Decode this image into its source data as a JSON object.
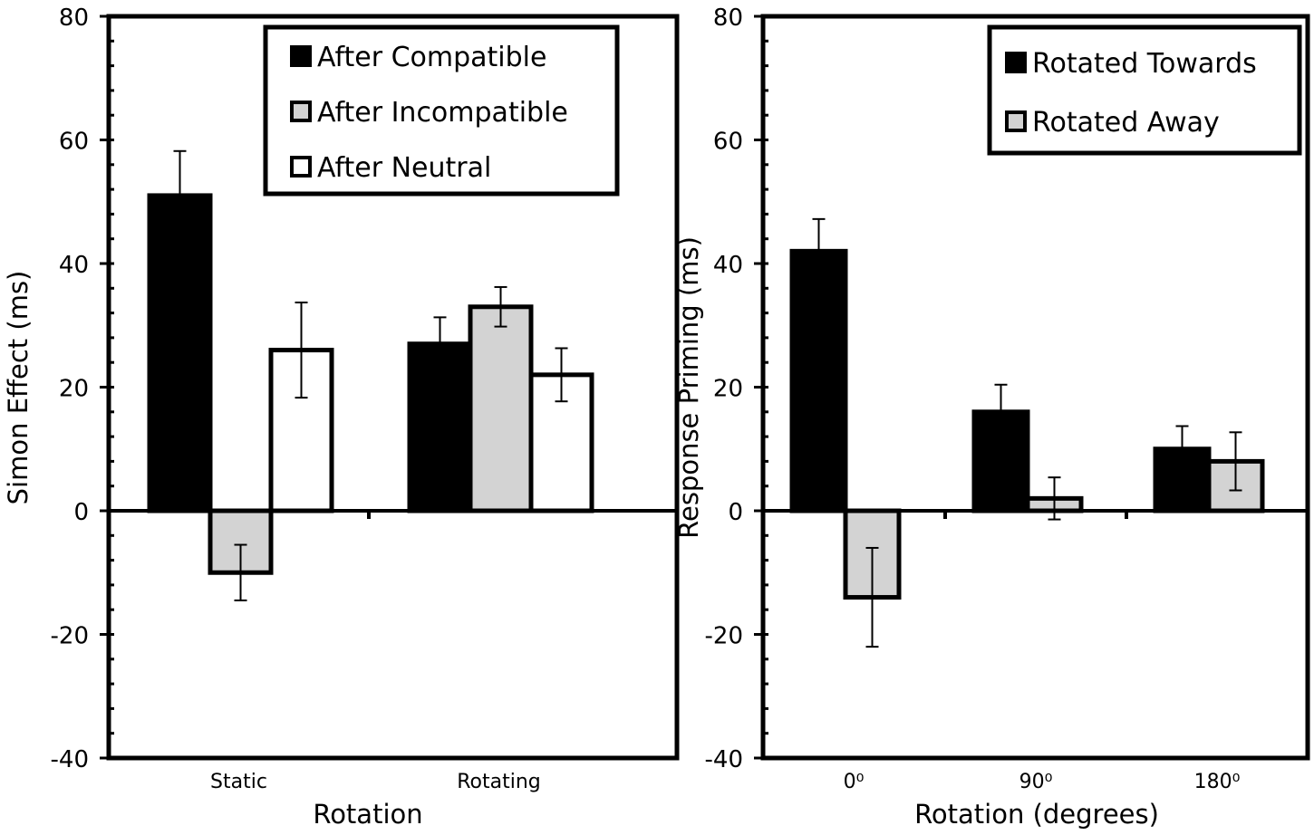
{
  "chart_data": [
    {
      "type": "bar",
      "title": "",
      "xlabel": "Rotation",
      "ylabel": "Simon Effect (ms)",
      "ylim": [
        -40,
        80
      ],
      "yticks": [
        -40,
        -20,
        0,
        20,
        40,
        60,
        80
      ],
      "categories": [
        "Static",
        "Rotating"
      ],
      "legend_position": "top-right",
      "series": [
        {
          "name": "After Compatible",
          "color": "#000000",
          "values": [
            51,
            27
          ],
          "errors": [
            7.2,
            4.3
          ]
        },
        {
          "name": "After Incompatible",
          "color": "#d3d3d3",
          "values": [
            -10,
            33
          ],
          "errors": [
            4.5,
            3.2
          ]
        },
        {
          "name": "After Neutral",
          "color": "#ffffff",
          "values": [
            26,
            22
          ],
          "errors": [
            7.7,
            4.3
          ]
        }
      ]
    },
    {
      "type": "bar",
      "title": "",
      "xlabel": "Rotation (degrees)",
      "ylabel": "Response Priming (ms)",
      "ylim": [
        -40,
        80
      ],
      "yticks": [
        -40,
        -20,
        0,
        20,
        40,
        60,
        80
      ],
      "categories": [
        "0⁰",
        "90⁰",
        "180⁰"
      ],
      "legend_position": "top-right",
      "series": [
        {
          "name": "Rotated Towards",
          "color": "#000000",
          "values": [
            42,
            16,
            10
          ],
          "errors": [
            5.2,
            4.4,
            3.7
          ]
        },
        {
          "name": "Rotated Away",
          "color": "#d3d3d3",
          "values": [
            -14,
            2,
            8
          ],
          "errors": [
            8.0,
            3.4,
            4.7
          ]
        }
      ]
    }
  ]
}
